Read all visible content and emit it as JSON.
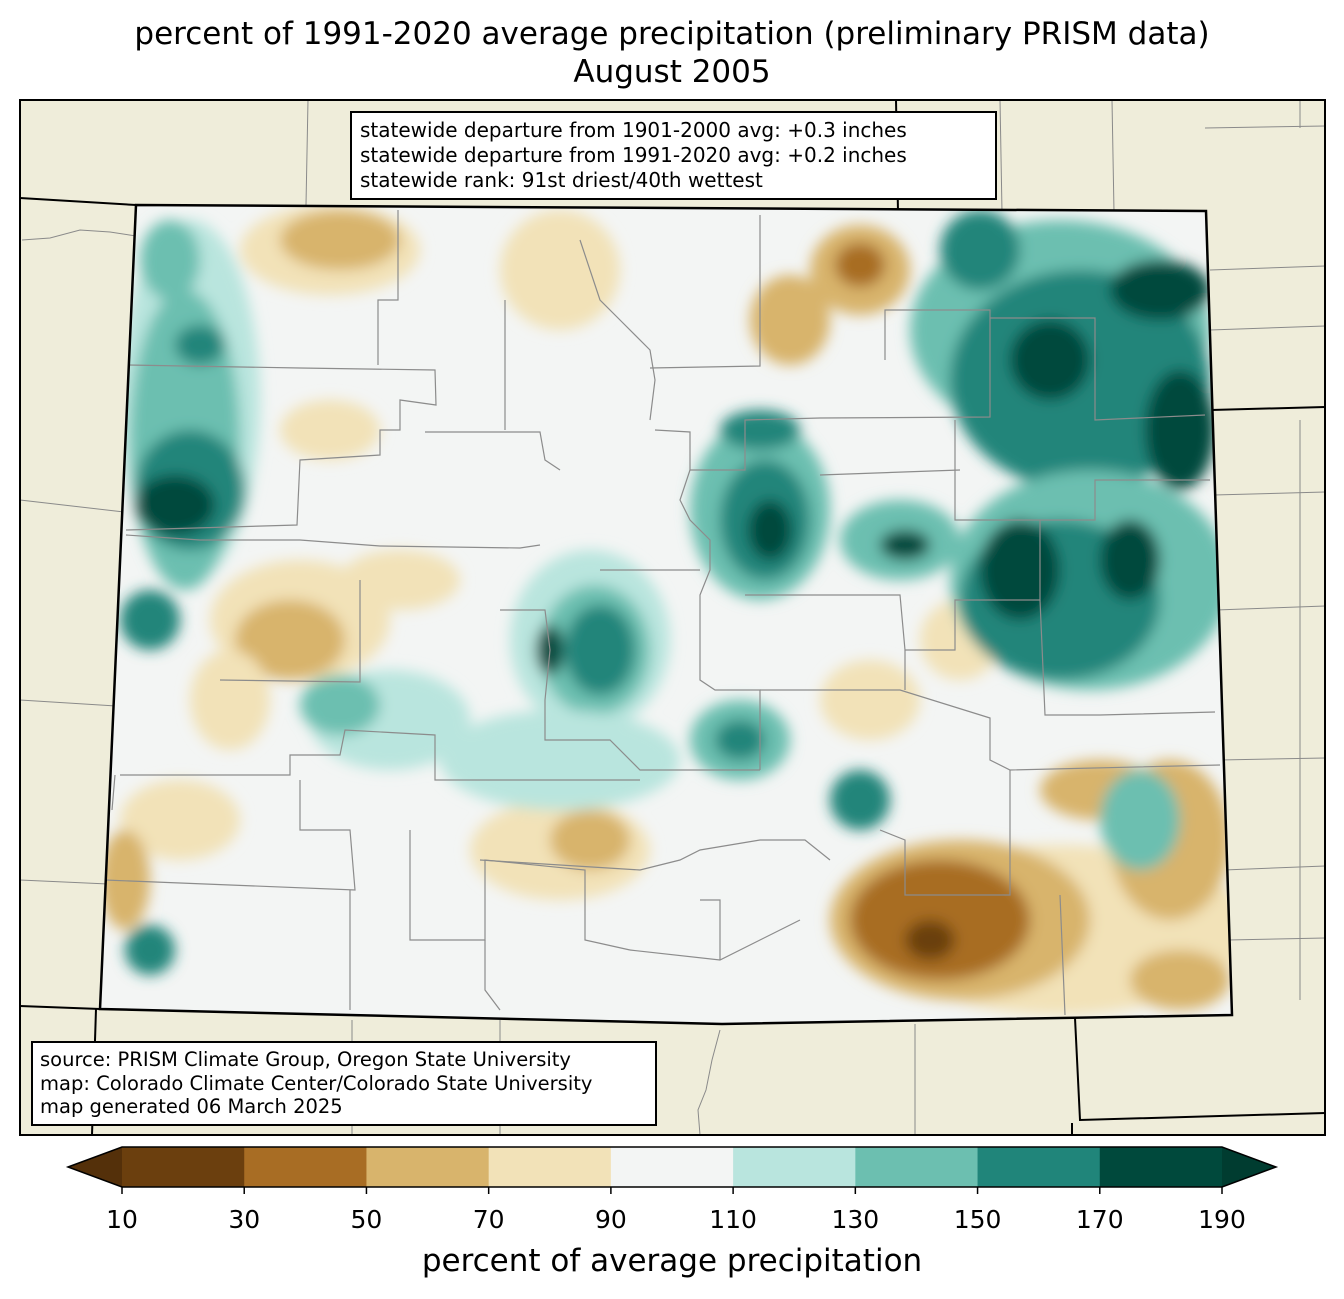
{
  "title": {
    "line1": "percent of 1991-2020 average precipitation (preliminary PRISM data)",
    "line2": "August 2005"
  },
  "stats_box": {
    "line1": "statewide departure from 1901-2000 avg: +0.3 inches",
    "line2": "statewide departure from 1991-2020 avg: +0.2 inches",
    "line3": "statewide rank: 91st driest/40th wettest"
  },
  "source_box": {
    "line1": "source: PRISM Climate Group, Oregon State University",
    "line2": "map: Colorado Climate Center/Colorado State University",
    "line3": "map generated 06 March 2025"
  },
  "colorbar": {
    "label": "percent of average precipitation",
    "ticks": [
      "10",
      "30",
      "50",
      "70",
      "90",
      "110",
      "130",
      "150",
      "170",
      "190"
    ],
    "colors": [
      "#6b3f0e",
      "#a86d24",
      "#d8b46c",
      "#f2e2b8",
      "#f3f5f4",
      "#b9e5de",
      "#6cbfb0",
      "#20857a",
      "#00493c"
    ],
    "under_color": "#54300a",
    "over_color": "#003c30"
  },
  "map_colors": {
    "background": "#efedda",
    "state_fill": "#f3f5f4"
  }
}
